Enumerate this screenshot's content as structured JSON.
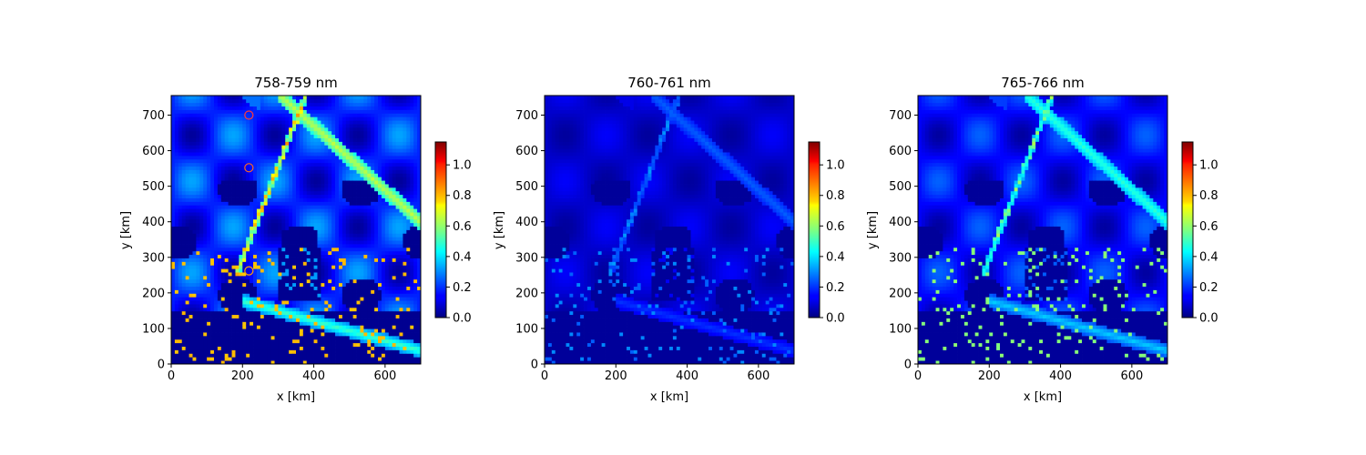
{
  "chart_data": [
    {
      "type": "heatmap",
      "title": "758-759 nm",
      "xlabel": "x [km]",
      "ylabel": "y [km]",
      "xlim": [
        0,
        700
      ],
      "ylim": [
        0,
        755
      ],
      "xticks": [
        0,
        200,
        400,
        600
      ],
      "yticks": [
        0,
        100,
        200,
        300,
        400,
        500,
        600,
        700
      ],
      "colormap": "jet",
      "colorbar": {
        "vmin": 0.0,
        "vmax": 1.15,
        "ticks": [
          "0.0",
          "0.2",
          "0.4",
          "0.6",
          "0.8",
          "1.0"
        ]
      },
      "markers": [
        {
          "shape": "circle",
          "x": 218,
          "y": 700,
          "color": "#ff3b3b"
        },
        {
          "shape": "circle",
          "x": 218,
          "y": 552,
          "color": "#ff6a1a"
        },
        {
          "shape": "circle",
          "x": 218,
          "y": 262,
          "color": "#ffa500"
        }
      ]
    },
    {
      "type": "heatmap",
      "title": "760-761 nm",
      "xlabel": "x [km]",
      "ylabel": "y [km]",
      "xlim": [
        0,
        700
      ],
      "ylim": [
        0,
        755
      ],
      "xticks": [
        0,
        200,
        400,
        600
      ],
      "yticks": [
        0,
        100,
        200,
        300,
        400,
        500,
        600,
        700
      ],
      "colormap": "jet",
      "colorbar": {
        "vmin": 0.0,
        "vmax": 1.15,
        "ticks": [
          "0.0",
          "0.2",
          "0.4",
          "0.6",
          "0.8",
          "1.0"
        ]
      },
      "markers": []
    },
    {
      "type": "heatmap",
      "title": "765-766 nm",
      "xlabel": "x [km]",
      "ylabel": "y [km]",
      "xlim": [
        0,
        700
      ],
      "ylim": [
        0,
        755
      ],
      "xticks": [
        0,
        200,
        400,
        600
      ],
      "yticks": [
        0,
        100,
        200,
        300,
        400,
        500,
        600,
        700
      ],
      "colormap": "jet",
      "colorbar": {
        "vmin": 0.0,
        "vmax": 1.15,
        "ticks": [
          "0.0",
          "0.2",
          "0.4",
          "0.6",
          "0.8",
          "1.0"
        ]
      },
      "markers": []
    }
  ]
}
